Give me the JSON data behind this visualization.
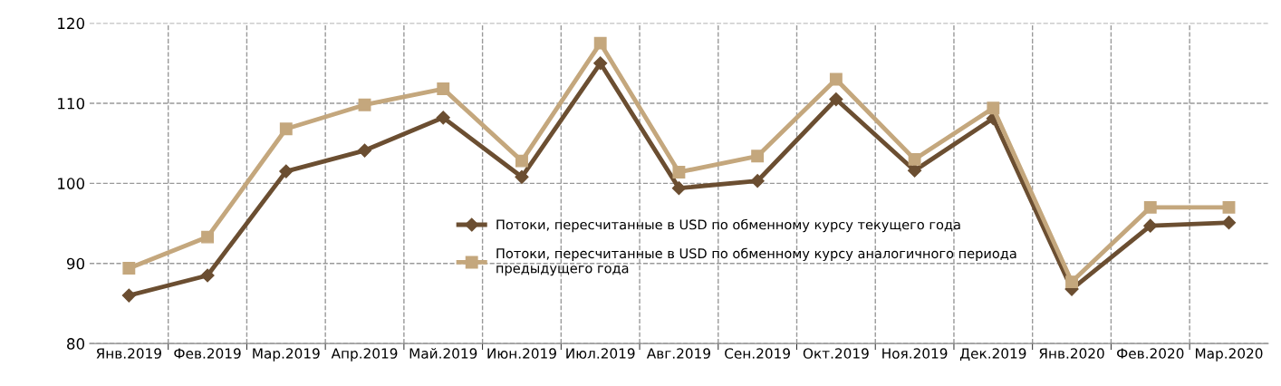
{
  "chart_data": {
    "type": "line",
    "categories": [
      "Янв.2019",
      "Фев.2019",
      "Мар.2019",
      "Апр.2019",
      "Май.2019",
      "Июн.2019",
      "Июл.2019",
      "Авг.2019",
      "Сен.2019",
      "Окт.2019",
      "Ноя.2019",
      "Дек.2019",
      "Янв.2020",
      "Фев.2020",
      "Мар.2020"
    ],
    "series": [
      {
        "name": "Потоки, пересчитанные в USD по обменному курсу текущего года",
        "color": "#6b4e31",
        "marker": "diamond",
        "values": [
          86.0,
          88.5,
          101.5,
          104.1,
          108.2,
          100.8,
          115.0,
          99.4,
          100.3,
          110.5,
          101.6,
          108.1,
          86.8,
          94.7,
          95.1
        ]
      },
      {
        "name": "Потоки, пересчитанные в USD по обменному курсу аналогичного периода\nпредыдущего года",
        "color": "#c4a77d",
        "marker": "square",
        "values": [
          89.4,
          93.3,
          106.8,
          109.8,
          111.8,
          102.8,
          117.5,
          101.4,
          103.4,
          113.0,
          103.0,
          109.4,
          87.7,
          97.0,
          97.0
        ]
      }
    ],
    "ylim": [
      80,
      120
    ],
    "yticks": [
      80,
      90,
      100,
      110,
      120
    ],
    "grid": true,
    "legend": "center"
  }
}
